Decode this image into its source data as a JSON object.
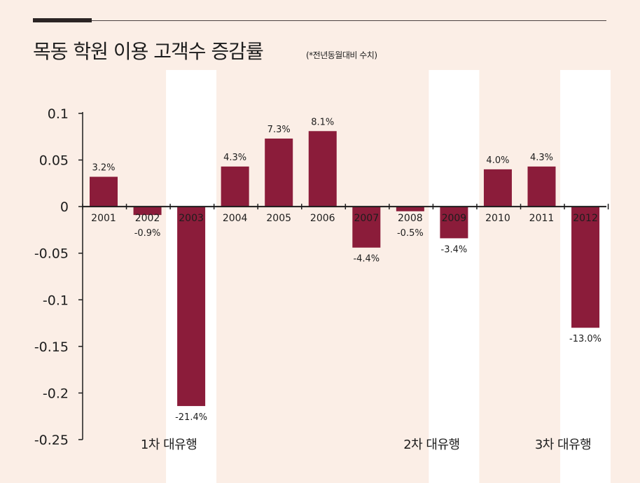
{
  "title": "목동 학원 이용 고객수 증감률",
  "subtitle": "(*전년동월대비 수치)",
  "colors": {
    "bar": "#8b1c3a",
    "background": "#fbeee6",
    "band": "#ffffff",
    "axis": "#1d1d1d"
  },
  "chart_data": {
    "type": "bar",
    "categories": [
      "2001",
      "2002",
      "2003",
      "2004",
      "2005",
      "2006",
      "2007",
      "2008",
      "2009",
      "2010",
      "2011",
      "2012"
    ],
    "values": [
      0.032,
      -0.009,
      -0.214,
      0.043,
      0.073,
      0.081,
      -0.044,
      -0.005,
      -0.034,
      0.04,
      0.043,
      -0.13
    ],
    "data_labels": [
      "3.2%",
      "-0.9%",
      "-21.4%",
      "4.3%",
      "7.3%",
      "8.1%",
      "-4.4%",
      "-0.5%",
      "-3.4%",
      "4.0%",
      "4.3%",
      "-13.0%"
    ],
    "yticks": [
      "0.1",
      "0.05",
      "0",
      "-0.05",
      "-0.1",
      "-0.15",
      "-0.2",
      "-0.25"
    ],
    "ylim": [
      -0.25,
      0.1
    ],
    "highlighted_periods": [
      {
        "label": "1차 대유행",
        "category": "2003"
      },
      {
        "label": "2차 대유행",
        "category": "2009"
      },
      {
        "label": "3차 대유행",
        "category": "2012"
      }
    ]
  }
}
